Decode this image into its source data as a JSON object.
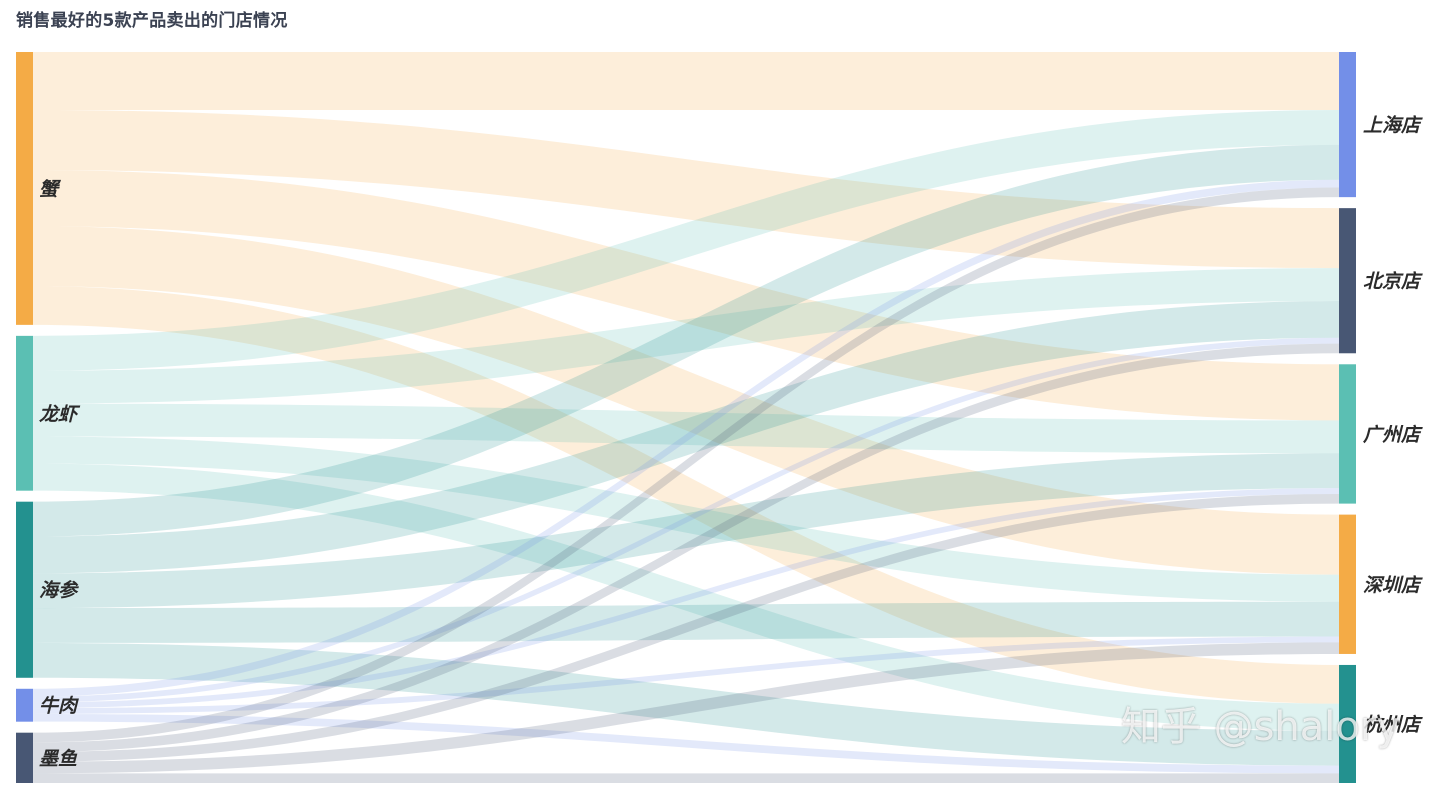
{
  "chart_data": {
    "type": "sankey",
    "title": "销售最好的5款产品卖出的门店情况",
    "sources": [
      {
        "name": "蟹",
        "color": "#f4ab46"
      },
      {
        "name": "龙虾",
        "color": "#5bbfb3"
      },
      {
        "name": "海参",
        "color": "#23918f"
      },
      {
        "name": "牛肉",
        "color": "#738fe8"
      },
      {
        "name": "墨鱼",
        "color": "#485774"
      }
    ],
    "targets": [
      {
        "name": "上海店",
        "color": "#738fe8"
      },
      {
        "name": "北京店",
        "color": "#485774"
      },
      {
        "name": "广州店",
        "color": "#5bbfb3"
      },
      {
        "name": "深圳店",
        "color": "#f4ab46"
      },
      {
        "name": "杭州店",
        "color": "#23918f"
      }
    ],
    "links": [
      {
        "source": "蟹",
        "target": "上海店",
        "value": 60
      },
      {
        "source": "蟹",
        "target": "北京店",
        "value": 62
      },
      {
        "source": "蟹",
        "target": "广州店",
        "value": 58
      },
      {
        "source": "蟹",
        "target": "深圳店",
        "value": 62
      },
      {
        "source": "蟹",
        "target": "杭州店",
        "value": 40
      },
      {
        "source": "龙虾",
        "target": "上海店",
        "value": 36
      },
      {
        "source": "龙虾",
        "target": "北京店",
        "value": 34
      },
      {
        "source": "龙虾",
        "target": "广州店",
        "value": 34
      },
      {
        "source": "龙虾",
        "target": "深圳店",
        "value": 28
      },
      {
        "source": "龙虾",
        "target": "杭州店",
        "value": 28
      },
      {
        "source": "海参",
        "target": "上海店",
        "value": 36
      },
      {
        "source": "海参",
        "target": "北京店",
        "value": 38
      },
      {
        "source": "海参",
        "target": "广州店",
        "value": 36
      },
      {
        "source": "海参",
        "target": "深圳店",
        "value": 36
      },
      {
        "source": "海参",
        "target": "杭州店",
        "value": 36
      },
      {
        "source": "牛肉",
        "target": "上海店",
        "value": 8
      },
      {
        "source": "牛肉",
        "target": "北京店",
        "value": 6
      },
      {
        "source": "牛肉",
        "target": "广州店",
        "value": 6
      },
      {
        "source": "牛肉",
        "target": "深圳店",
        "value": 6
      },
      {
        "source": "牛肉",
        "target": "杭州店",
        "value": 8
      },
      {
        "source": "墨鱼",
        "target": "上海店",
        "value": 10
      },
      {
        "source": "墨鱼",
        "target": "北京店",
        "value": 10
      },
      {
        "source": "墨鱼",
        "target": "广州店",
        "value": 10
      },
      {
        "source": "墨鱼",
        "target": "深圳店",
        "value": 12
      },
      {
        "source": "墨鱼",
        "target": "杭州店",
        "value": 10
      }
    ]
  },
  "watermark": "知乎 @shalory"
}
